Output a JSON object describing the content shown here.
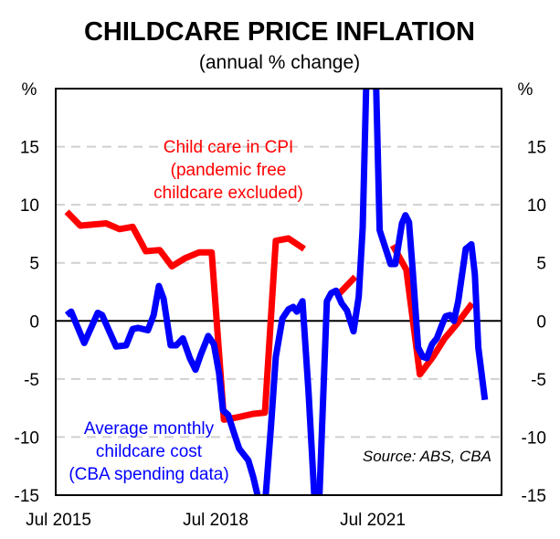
{
  "chart_data": {
    "type": "line",
    "title": "CHILDCARE PRICE INFLATION",
    "subtitle": "(annual % change)",
    "xlabel": "",
    "ylabel_left": "%",
    "ylabel_right": "%",
    "ylim": [
      -15,
      20
    ],
    "yticks": [
      -15,
      -10,
      -5,
      0,
      5,
      10,
      15
    ],
    "x_unit": "months since Jul 2015",
    "xlim": [
      0,
      101.5
    ],
    "xticks": [
      {
        "label": "Jul 2015",
        "m": 0
      },
      {
        "label": "Jul 2018",
        "m": 36
      },
      {
        "label": "Jul 2021",
        "m": 72
      }
    ],
    "grid": "horizontal dashed",
    "source": "Source: ABS, CBA",
    "series": [
      {
        "name": "Child care in CPI (pandemic free childcare excluded)",
        "label_lines": [
          "Child care in CPI",
          "(pandemic free",
          "childcare excluded)"
        ],
        "color": "#ff0000",
        "segments": [
          [
            [
              1.9,
              9.4
            ],
            [
              5,
              8.2
            ],
            [
              10.9,
              8.4
            ],
            [
              14,
              7.9
            ],
            [
              17,
              8.1
            ],
            [
              20,
              6.0
            ],
            [
              23.2,
              6.1
            ],
            [
              26,
              4.7
            ],
            [
              29,
              5.4
            ],
            [
              32.2,
              5.9
            ],
            [
              35.1,
              5.9
            ],
            [
              37.9,
              -8.5
            ],
            [
              41,
              -8.3
            ],
            [
              44.6,
              -8.0
            ],
            [
              47.3,
              -7.9
            ],
            [
              49.8,
              6.9
            ],
            [
              52.7,
              7.1
            ],
            [
              56.3,
              6.2
            ]
          ],
          [
            [
              64.2,
              2.3
            ],
            [
              68,
              3.8
            ]
          ],
          [
            [
              76.6,
              6.5
            ],
            [
              79.7,
              4.4
            ],
            [
              82.8,
              -4.6
            ],
            [
              85.8,
              -3.1
            ],
            [
              88.5,
              -1.5
            ],
            [
              91.2,
              -0.3
            ],
            [
              94.8,
              1.5
            ]
          ]
        ]
      },
      {
        "name": "Average monthly childcare cost (CBA spending data)",
        "label_lines": [
          "Average monthly",
          "childcare cost",
          "(CBA spending data)"
        ],
        "color": "#0000ff",
        "segments": [
          [
            [
              1.9,
              0.5
            ],
            [
              2.9,
              0.8
            ],
            [
              5.9,
              -1.9
            ],
            [
              9,
              0.7
            ],
            [
              10,
              0.5
            ],
            [
              13.2,
              -2.2
            ],
            [
              15.5,
              -2.1
            ],
            [
              17,
              -0.7
            ],
            [
              18.2,
              -0.6
            ],
            [
              20.5,
              -0.8
            ],
            [
              21.8,
              0.5
            ],
            [
              23,
              3.0
            ],
            [
              24.1,
              1.9
            ],
            [
              25.7,
              -2.1
            ],
            [
              27,
              -2.1
            ],
            [
              28.5,
              -1.5
            ],
            [
              30.1,
              -3.2
            ],
            [
              31.4,
              -4.2
            ],
            [
              32.6,
              -2.9
            ],
            [
              34.3,
              -1.3
            ],
            [
              35.6,
              -2.0
            ],
            [
              36.8,
              -4.5
            ],
            [
              37.7,
              -7.7
            ],
            [
              38.9,
              -8.1
            ],
            [
              40,
              -9.4
            ],
            [
              41.4,
              -11.0
            ],
            [
              43.5,
              -12.0
            ],
            [
              44.6,
              -13.4
            ],
            [
              45.6,
              -15.0
            ]
          ],
          [
            [
              47.5,
              -15.0
            ],
            [
              48.7,
              -9.0
            ],
            [
              49.8,
              -3.1
            ],
            [
              51.3,
              0.2
            ],
            [
              52.7,
              1.0
            ],
            [
              53.8,
              1.2
            ],
            [
              54.6,
              0.8
            ],
            [
              55.9,
              1.7
            ],
            [
              57.3,
              -6.2
            ],
            [
              58.6,
              -15.0
            ]
          ],
          [
            [
              59.8,
              -15.0
            ],
            [
              61.5,
              1.7
            ],
            [
              62.5,
              2.4
            ],
            [
              63.6,
              2.6
            ],
            [
              64.9,
              1.5
            ],
            [
              66.1,
              0.9
            ],
            [
              67.6,
              -0.9
            ],
            [
              68.8,
              2.1
            ],
            [
              69.7,
              8.0
            ],
            [
              70.5,
              20.0
            ]
          ],
          [
            [
              72.8,
              20.0
            ],
            [
              73.6,
              7.8
            ],
            [
              76.1,
              4.9
            ],
            [
              77.2,
              4.9
            ],
            [
              78.7,
              8.4
            ],
            [
              79.5,
              9.1
            ],
            [
              80.3,
              8.5
            ],
            [
              81.2,
              4.1
            ],
            [
              82.4,
              -2.3
            ],
            [
              83.5,
              -3.1
            ],
            [
              84.4,
              -3.2
            ],
            [
              85.6,
              -2.0
            ],
            [
              86.7,
              -1.5
            ],
            [
              87.9,
              -0.3
            ],
            [
              88.7,
              0.4
            ],
            [
              89.7,
              0.5
            ],
            [
              90.6,
              0.0
            ],
            [
              91.6,
              1.7
            ],
            [
              93.3,
              6.2
            ],
            [
              94.6,
              6.6
            ],
            [
              95.4,
              4.0
            ],
            [
              96.2,
              -2.3
            ],
            [
              97.7,
              -6.8
            ]
          ]
        ]
      }
    ]
  }
}
